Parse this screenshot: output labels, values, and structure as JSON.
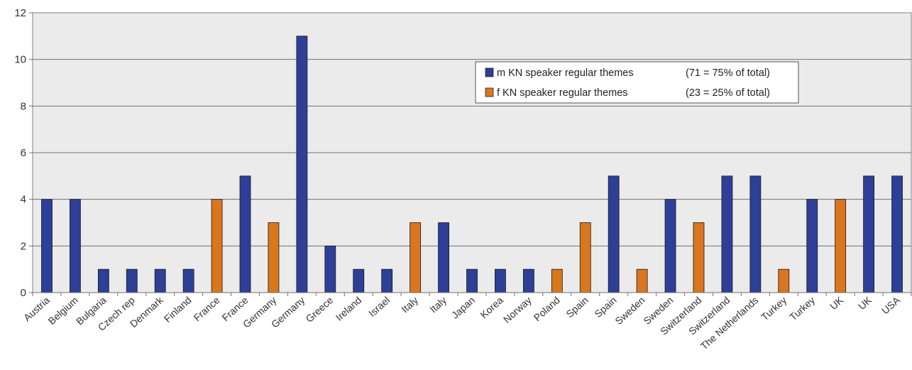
{
  "chart_data": {
    "type": "bar",
    "categories": [
      "Austria",
      "Belgium",
      "Bulgaria",
      "Czech rep",
      "Denmark",
      "Finland",
      "France",
      "France",
      "Germany",
      "Germany",
      "Greece",
      "Ireland",
      "Israel",
      "Italy",
      "Italy",
      "Japan",
      "Korea",
      "Norway",
      "Poland",
      "Spain",
      "Spain",
      "Sweden",
      "Sweden",
      "Switzerland",
      "Switzerland",
      "The Netherlands",
      "Turkey",
      "Turkey",
      "UK",
      "UK",
      "USA"
    ],
    "values": [
      4,
      4,
      1,
      1,
      1,
      1,
      4,
      5,
      3,
      11,
      2,
      1,
      1,
      3,
      3,
      1,
      1,
      1,
      1,
      3,
      5,
      1,
      4,
      3,
      5,
      5,
      1,
      4,
      4,
      5,
      5
    ],
    "bar_series": [
      "m",
      "m",
      "m",
      "m",
      "m",
      "m",
      "f",
      "m",
      "f",
      "m",
      "m",
      "m",
      "m",
      "f",
      "m",
      "m",
      "m",
      "m",
      "f",
      "f",
      "m",
      "f",
      "m",
      "f",
      "m",
      "m",
      "f",
      "m",
      "f",
      "m",
      "m"
    ],
    "series": [
      {
        "key": "m",
        "name": "m KN speaker regular themes",
        "note": "(71 = 75% of total)",
        "color": "#2E3F98"
      },
      {
        "key": "f",
        "name": "f KN speaker regular themes",
        "note": "(23 = 25% of total)",
        "color": "#D9761E"
      }
    ],
    "title": "",
    "xlabel": "",
    "ylabel": "",
    "ylim": [
      0,
      12
    ],
    "yticks": [
      0,
      2,
      4,
      6,
      8,
      10,
      12
    ],
    "grid": true,
    "plot_background": "#EBEBEB",
    "legend_position": "top-right"
  }
}
